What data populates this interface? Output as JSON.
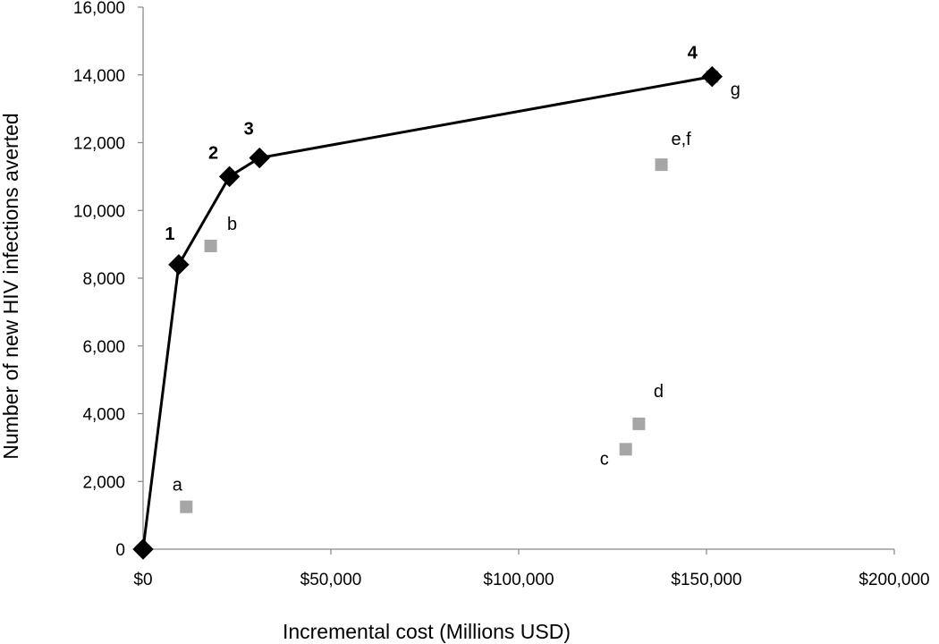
{
  "chart_data": {
    "type": "scatter",
    "title": "",
    "xlabel": "Incremental cost (Millions USD)",
    "ylabel": "Number of new HIV infections averted",
    "xlim": [
      0,
      200000
    ],
    "ylim": [
      0,
      16000
    ],
    "x_ticks": [
      {
        "value": 0,
        "label": "$0"
      },
      {
        "value": 50000,
        "label": "$50,000"
      },
      {
        "value": 100000,
        "label": "$100,000"
      },
      {
        "value": 150000,
        "label": "$150,000"
      },
      {
        "value": 200000,
        "label": "$200,000"
      }
    ],
    "y_ticks": [
      {
        "value": 0,
        "label": "0"
      },
      {
        "value": 2000,
        "label": "2,000"
      },
      {
        "value": 4000,
        "label": "4,000"
      },
      {
        "value": 6000,
        "label": "6,000"
      },
      {
        "value": 8000,
        "label": "8,000"
      },
      {
        "value": 10000,
        "label": "10,000"
      },
      {
        "value": 12000,
        "label": "12,000"
      },
      {
        "value": 14000,
        "label": "14,000"
      },
      {
        "value": 16000,
        "label": "16,000"
      }
    ],
    "grid": false,
    "series": [
      {
        "marker": "diamond",
        "color": "#000000",
        "line": true,
        "points": [
          {
            "label": "",
            "x": 0,
            "y": 0
          },
          {
            "label": "1",
            "x": 9500,
            "y": 8400
          },
          {
            "label": "2",
            "x": 23000,
            "y": 11000
          },
          {
            "label": "3",
            "x": 31000,
            "y": 11550
          },
          {
            "label": "4",
            "x": 151500,
            "y": 13950
          }
        ]
      },
      {
        "marker": "square",
        "color": "#a6a6a6",
        "line": false,
        "points": [
          {
            "label": "a",
            "x": 11500,
            "y": 1250
          },
          {
            "label": "b",
            "x": 18000,
            "y": 8950
          },
          {
            "label": "c",
            "x": 128500,
            "y": 2950
          },
          {
            "label": "d",
            "x": 132000,
            "y": 3700
          },
          {
            "label": "e,f",
            "x": 138000,
            "y": 11350
          },
          {
            "label": "g",
            "x": 151500,
            "y": 13950
          }
        ]
      }
    ]
  }
}
